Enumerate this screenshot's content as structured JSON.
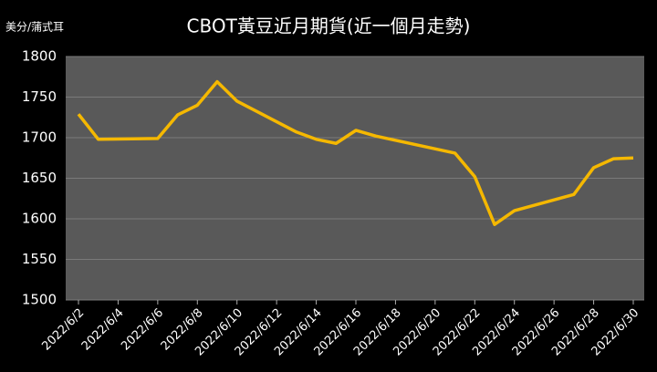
{
  "chart_data": {
    "type": "line",
    "title": "CBOT黃豆近月期貨(近一個月走勢)",
    "y_label": "美分/蒲式耳",
    "x": [
      "2022/6/2",
      "2022/6/3",
      "2022/6/6",
      "2022/6/7",
      "2022/6/8",
      "2022/6/9",
      "2022/6/10",
      "2022/6/13",
      "2022/6/14",
      "2022/6/15",
      "2022/6/16",
      "2022/6/17",
      "2022/6/21",
      "2022/6/22",
      "2022/6/23",
      "2022/6/24",
      "2022/6/27",
      "2022/6/28",
      "2022/6/29",
      "2022/6/30"
    ],
    "series": [
      {
        "color": "#f5b800",
        "values": [
          1729,
          1698,
          1699,
          1728,
          1740,
          1769,
          1745,
          1707,
          1698,
          1693,
          1709,
          1702,
          1681,
          1652,
          1593,
          1610,
          1630,
          1663,
          1674,
          1675
        ]
      }
    ],
    "xticks": [
      "2022/6/2",
      "2022/6/4",
      "2022/6/6",
      "2022/6/8",
      "2022/6/10",
      "2022/6/12",
      "2022/6/14",
      "2022/6/16",
      "2022/6/18",
      "2022/6/20",
      "2022/6/22",
      "2022/6/24",
      "2022/6/26",
      "2022/6/28",
      "2022/6/30"
    ],
    "ylim": [
      1500,
      1800
    ],
    "yticks": [
      1500,
      1550,
      1600,
      1650,
      1700,
      1750,
      1800
    ],
    "grid": true
  }
}
